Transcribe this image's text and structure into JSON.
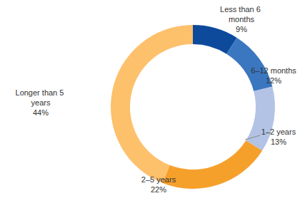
{
  "chart_data": {
    "type": "donut",
    "categories": [
      "Less than 6 months",
      "6–12 months",
      "1–2 years",
      "2–5 years",
      "Longer than 5 years"
    ],
    "values": [
      9,
      12,
      13,
      22,
      44
    ],
    "value_labels": [
      "9%",
      "12%",
      "13%",
      "22%",
      "44%"
    ],
    "colors": [
      "#0d4a9c",
      "#3a77c0",
      "#b3c3e5",
      "#f6a02c",
      "#fdc06b"
    ],
    "data_labels": true
  }
}
